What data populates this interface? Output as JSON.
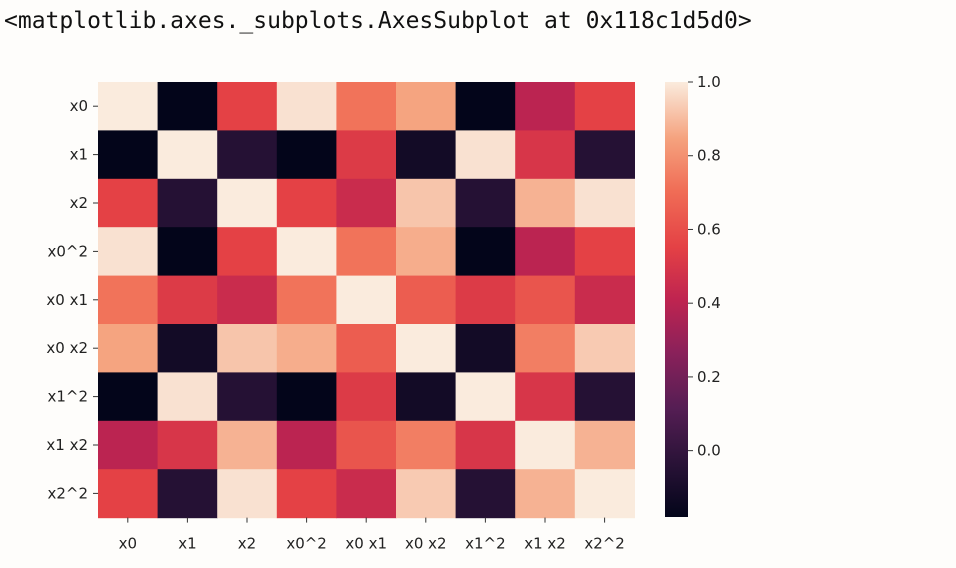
{
  "output_text": "<matplotlib.axes._subplots.AxesSubplot at 0x118c1d5d0>",
  "chart_data": {
    "type": "heatmap",
    "labels": [
      "x0",
      "x1",
      "x2",
      "x0^2",
      "x0 x1",
      "x0 x2",
      "x1^2",
      "x1 x2",
      "x2^2"
    ],
    "values": [
      [
        1.0,
        -0.18,
        0.55,
        0.98,
        0.72,
        0.85,
        -0.18,
        0.4,
        0.55
      ],
      [
        -0.18,
        1.0,
        -0.05,
        -0.18,
        0.52,
        -0.12,
        0.98,
        0.5,
        -0.05
      ],
      [
        0.55,
        -0.05,
        1.0,
        0.55,
        0.45,
        0.92,
        -0.05,
        0.88,
        0.98
      ],
      [
        0.98,
        -0.18,
        0.55,
        1.0,
        0.72,
        0.87,
        -0.18,
        0.4,
        0.55
      ],
      [
        0.72,
        0.52,
        0.45,
        0.72,
        1.0,
        0.65,
        0.52,
        0.62,
        0.45
      ],
      [
        0.85,
        -0.12,
        0.92,
        0.87,
        0.65,
        1.0,
        -0.12,
        0.75,
        0.93
      ],
      [
        -0.18,
        0.98,
        -0.05,
        -0.18,
        0.52,
        -0.12,
        1.0,
        0.5,
        -0.05
      ],
      [
        0.4,
        0.5,
        0.88,
        0.4,
        0.62,
        0.75,
        0.5,
        1.0,
        0.88
      ],
      [
        0.55,
        -0.05,
        0.98,
        0.55,
        0.45,
        0.93,
        -0.05,
        0.88,
        1.0
      ]
    ],
    "colorbar": {
      "min": -0.18,
      "max": 1.0,
      "ticks": [
        0.0,
        0.2,
        0.4,
        0.6,
        0.8,
        1.0
      ],
      "tick_labels": [
        "0.0",
        "0.2",
        "0.4",
        "0.6",
        "0.8",
        "1.0"
      ]
    },
    "colormap": "rocket",
    "grid": false,
    "legend": "colorbar-right"
  }
}
